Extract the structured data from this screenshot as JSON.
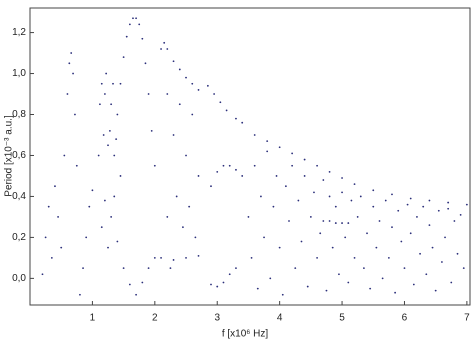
{
  "chart_data": {
    "type": "scatter",
    "x_label": "f [x10⁶ Hz]",
    "y_label": "Period [x10⁻³ a.u.]",
    "color": "#2b2f7a",
    "xlim": [
      0,
      7.05
    ],
    "ylim": [
      -0.13,
      1.32
    ],
    "xticks": [
      1,
      2,
      3,
      4,
      5,
      6,
      7
    ],
    "yticks": [
      {
        "value": 0,
        "label": "0,0"
      },
      {
        "value": 0.2,
        "label": "0,2"
      },
      {
        "value": 0.4,
        "label": "0,4"
      },
      {
        "value": 0.6,
        "label": "0,6"
      },
      {
        "value": 0.8,
        "label": "0,8"
      },
      {
        "value": 1.0,
        "label": "1,0"
      },
      {
        "value": 1.2,
        "label": "1,2"
      }
    ],
    "x": [
      1.4,
      1.45,
      1.5,
      1.55,
      1.6,
      1.65,
      1.7,
      1.75,
      1.8,
      1.85,
      1.9,
      1.95,
      2.0,
      2.1,
      2.15,
      2.2,
      2.3,
      2.4,
      2.5,
      2.6,
      2.7,
      2.85,
      2.95,
      3.05,
      3.15,
      3.3,
      3.4,
      3.6,
      3.8,
      4.0,
      4.2,
      4.4,
      4.6,
      4.8,
      5.0,
      5.2,
      5.5,
      5.8,
      6.1,
      6.4,
      6.7,
      7.0,
      0.55,
      0.6,
      0.63,
      0.66,
      0.69,
      0.72,
      0.75,
      0.8,
      0.85,
      0.9,
      0.95,
      1.0,
      1.2,
      1.3,
      1.4,
      1.5,
      1.6,
      1.7,
      1.8,
      1.9,
      2.0,
      2.9,
      3.0,
      3.1,
      3.2,
      3.3,
      3.4,
      2.9,
      3.0,
      3.1,
      3.2,
      3.3,
      2.1,
      2.3,
      2.5,
      2.7,
      4.7,
      4.8,
      4.9,
      5.0,
      5.1,
      0.2,
      0.25,
      0.3,
      0.35,
      0.4,
      0.45,
      0.5,
      1.1,
      1.12,
      1.15,
      1.18,
      1.2,
      1.22,
      1.25,
      1.28,
      1.3,
      1.33,
      1.35,
      1.38,
      1.15,
      1.25,
      1.35,
      1.45,
      2.2,
      2.3,
      2.35,
      2.4,
      2.45,
      2.5,
      2.55,
      2.6,
      2.65,
      2.7,
      2.2,
      2.25,
      3.5,
      3.55,
      3.6,
      3.65,
      3.7,
      3.75,
      3.8,
      3.85,
      3.9,
      3.95,
      4.0,
      4.05,
      4.1,
      4.15,
      4.2,
      4.25,
      4.3,
      4.35,
      4.4,
      4.45,
      4.5,
      4.55,
      4.6,
      4.65,
      4.7,
      4.75,
      4.8,
      4.85,
      4.9,
      4.95,
      5.0,
      5.05,
      5.1,
      5.15,
      5.2,
      5.25,
      5.3,
      5.35,
      5.4,
      5.45,
      5.5,
      5.55,
      5.6,
      5.65,
      5.7,
      5.75,
      5.8,
      5.85,
      5.9,
      5.95,
      6.0,
      6.05,
      6.1,
      6.15,
      6.2,
      6.25,
      6.3,
      6.35,
      6.4,
      6.45,
      6.5,
      6.55,
      6.6,
      6.65,
      6.7,
      6.75,
      6.8,
      6.85,
      6.9,
      6.95
    ],
    "values": [
      0.8,
      0.95,
      1.08,
      1.18,
      1.24,
      1.27,
      1.27,
      1.24,
      1.17,
      1.05,
      0.9,
      0.72,
      0.55,
      1.12,
      1.15,
      1.12,
      1.06,
      1.02,
      0.98,
      0.95,
      0.92,
      0.94,
      0.9,
      0.86,
      0.82,
      0.78,
      0.76,
      0.7,
      0.67,
      0.64,
      0.61,
      0.58,
      0.55,
      0.52,
      0.49,
      0.46,
      0.43,
      0.41,
      0.39,
      0.38,
      0.37,
      0.36,
      0.6,
      0.9,
      1.05,
      1.1,
      1.0,
      0.8,
      0.55,
      -0.08,
      0.05,
      0.2,
      0.35,
      0.43,
      0.38,
      0.3,
      0.18,
      0.05,
      -0.03,
      -0.08,
      -0.02,
      0.05,
      0.1,
      0.45,
      0.52,
      0.55,
      0.55,
      0.53,
      0.5,
      -0.03,
      -0.04,
      -0.02,
      0.02,
      0.05,
      0.1,
      0.09,
      0.1,
      0.11,
      0.28,
      0.28,
      0.27,
      0.27,
      0.27,
      0.02,
      0.2,
      0.35,
      0.1,
      0.45,
      0.3,
      0.15,
      0.6,
      0.85,
      0.95,
      0.7,
      0.9,
      1.0,
      0.65,
      0.72,
      0.85,
      0.95,
      0.6,
      0.68,
      0.25,
      0.15,
      0.4,
      0.5,
      0.9,
      0.7,
      0.4,
      0.85,
      0.25,
      0.6,
      0.35,
      0.8,
      0.2,
      0.5,
      0.3,
      0.05,
      0.3,
      0.1,
      0.55,
      -0.05,
      0.4,
      0.2,
      0.62,
      0.0,
      0.35,
      0.5,
      0.15,
      -0.08,
      0.45,
      0.28,
      0.55,
      0.05,
      0.38,
      0.18,
      0.5,
      -0.04,
      0.3,
      0.42,
      0.1,
      0.22,
      0.48,
      -0.06,
      0.4,
      0.15,
      0.35,
      0.02,
      0.42,
      0.2,
      -0.02,
      0.38,
      0.1,
      0.3,
      0.4,
      0.05,
      0.22,
      -0.05,
      0.35,
      0.15,
      0.28,
      0.0,
      0.38,
      0.1,
      0.25,
      -0.07,
      0.33,
      0.18,
      0.05,
      0.36,
      0.22,
      -0.03,
      0.3,
      0.12,
      0.35,
      0.02,
      0.26,
      0.15,
      -0.06,
      0.33,
      0.08,
      0.2,
      0.34,
      -0.02,
      0.28,
      0.12,
      0.31,
      0.05
    ]
  }
}
